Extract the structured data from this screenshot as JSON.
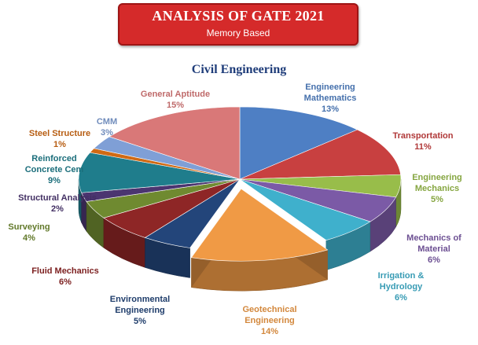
{
  "header": {
    "title": "ANALYSIS OF GATE 2021",
    "subtitle": "Memory Based"
  },
  "chart_data": {
    "type": "pie",
    "title": "Civil Engineering",
    "style": "3d-exploded",
    "slices": [
      {
        "label": "Engineering Mathematics",
        "value": 13,
        "pct": "13%",
        "color": "#4e7fc4"
      },
      {
        "label": "Transportation",
        "value": 11,
        "pct": "11%",
        "color": "#c84040"
      },
      {
        "label": "Engineering Mechanics",
        "value": 5,
        "pct": "5%",
        "color": "#98bd4a"
      },
      {
        "label": "Mechanics of Material",
        "value": 6,
        "pct": "6%",
        "color": "#7b5aa6"
      },
      {
        "label": "Irrigation & Hydrology",
        "value": 6,
        "pct": "6%",
        "color": "#3fb0cc"
      },
      {
        "label": "Geotechnical Engineering",
        "value": 14,
        "pct": "14%",
        "color": "#f09a45"
      },
      {
        "label": "Environmental Engineering",
        "value": 5,
        "pct": "5%",
        "color": "#23457a"
      },
      {
        "label": "Fluid Mechanics",
        "value": 6,
        "pct": "6%",
        "color": "#8e2626"
      },
      {
        "label": "Surveying",
        "value": 4,
        "pct": "4%",
        "color": "#6f8a30"
      },
      {
        "label": "Structural Analysis",
        "value": 2,
        "pct": "2%",
        "color": "#4b3570"
      },
      {
        "label": "Reinforced Concrete Cem",
        "value": 9,
        "pct": "9%",
        "color": "#1f7d8c"
      },
      {
        "label": "Steel Structure",
        "value": 1,
        "pct": "1%",
        "color": "#d06a14"
      },
      {
        "label": "CMM",
        "value": 3,
        "pct": "3%",
        "color": "#7f9fd6"
      },
      {
        "label": "General Aptitude",
        "value": 15,
        "pct": "15%",
        "color": "#d97878"
      }
    ]
  }
}
